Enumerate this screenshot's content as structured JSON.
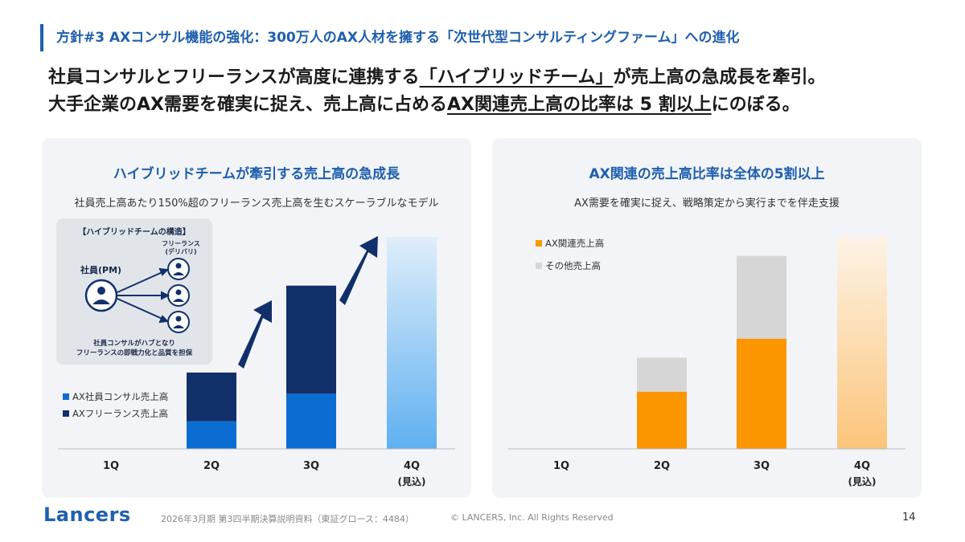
{
  "header": {
    "title": "方針#3 AXコンサル機能の強化：300万人のAX人材を擁する「次世代型コンサルティングファーム」への進化"
  },
  "lead": {
    "line1_a": "社員コンサルとフリーランスが高度に連携する",
    "line1_u": "「ハイブリッドチーム」",
    "line1_b": "が売上高の急成長を牽引。",
    "line2_a": "大手企業のAX需要を確実に捉え、売上高に占める",
    "line2_u": "AX関連売上高の比率は 5 割以上",
    "line2_b": "にのぼる。"
  },
  "left_panel": {
    "title": "ハイブリッドチームが牽引する売上高の急成長",
    "subtitle": "社員売上高あたり150%超のフリーランス売上高を生むスケーラブルなモデル",
    "structure": {
      "title": "【ハイブリッドチームの構造】",
      "pm_label": "社員(PM)",
      "freelance_label_1": "フリーランス",
      "freelance_label_2": "(デリバリ)",
      "caption_1": "社員コンサルがハブとなり",
      "caption_2": "フリーランスの即戦力化と品質を担保"
    }
  },
  "right_panel": {
    "title": "AX関連の売上高比率は全体の5割以上",
    "subtitle": "AX需要を確実に捉え、戦略策定から実行までを伴走支援"
  },
  "chart_data": [
    {
      "type": "bar",
      "stacked": true,
      "categories": [
        "1Q",
        "2Q",
        "3Q",
        "4Q"
      ],
      "category_sublabels": [
        "",
        "",
        "",
        "(見込)"
      ],
      "series": [
        {
          "name": "AX社員コンサル売上高",
          "values": [
            0,
            13,
            26,
            null
          ],
          "color": "#0b6dd2"
        },
        {
          "name": "AXフリーランス売上高",
          "values": [
            0,
            23,
            51,
            null
          ],
          "color": "#11306a"
        }
      ],
      "forecast_total": {
        "category": "4Q",
        "value": 100,
        "color": "#8cc4f2"
      },
      "ylim": [
        0,
        100
      ],
      "legend_position": "left",
      "grid": false
    },
    {
      "type": "bar",
      "stacked": true,
      "categories": [
        "1Q",
        "2Q",
        "3Q",
        "4Q"
      ],
      "category_sublabels": [
        "",
        "",
        "",
        "(見込)"
      ],
      "series": [
        {
          "name": "AX関連売上高",
          "values": [
            0,
            27,
            52,
            null
          ],
          "color": "#fb9500"
        },
        {
          "name": "その他売上高",
          "values": [
            0,
            16,
            39,
            null
          ],
          "color": "#d6d6d6"
        }
      ],
      "forecast_total": {
        "category": "4Q",
        "value": 100,
        "color": "#fbd9a6"
      },
      "ylim": [
        0,
        100
      ],
      "legend_position": "top-left",
      "grid": false
    }
  ],
  "footer": {
    "logo": "Lancers",
    "doc": "2026年3月期 第3四半期決算説明資料（東証グロース：4484）",
    "copyright": "© LANCERS, Inc. All Rights Reserved",
    "page": "14"
  }
}
